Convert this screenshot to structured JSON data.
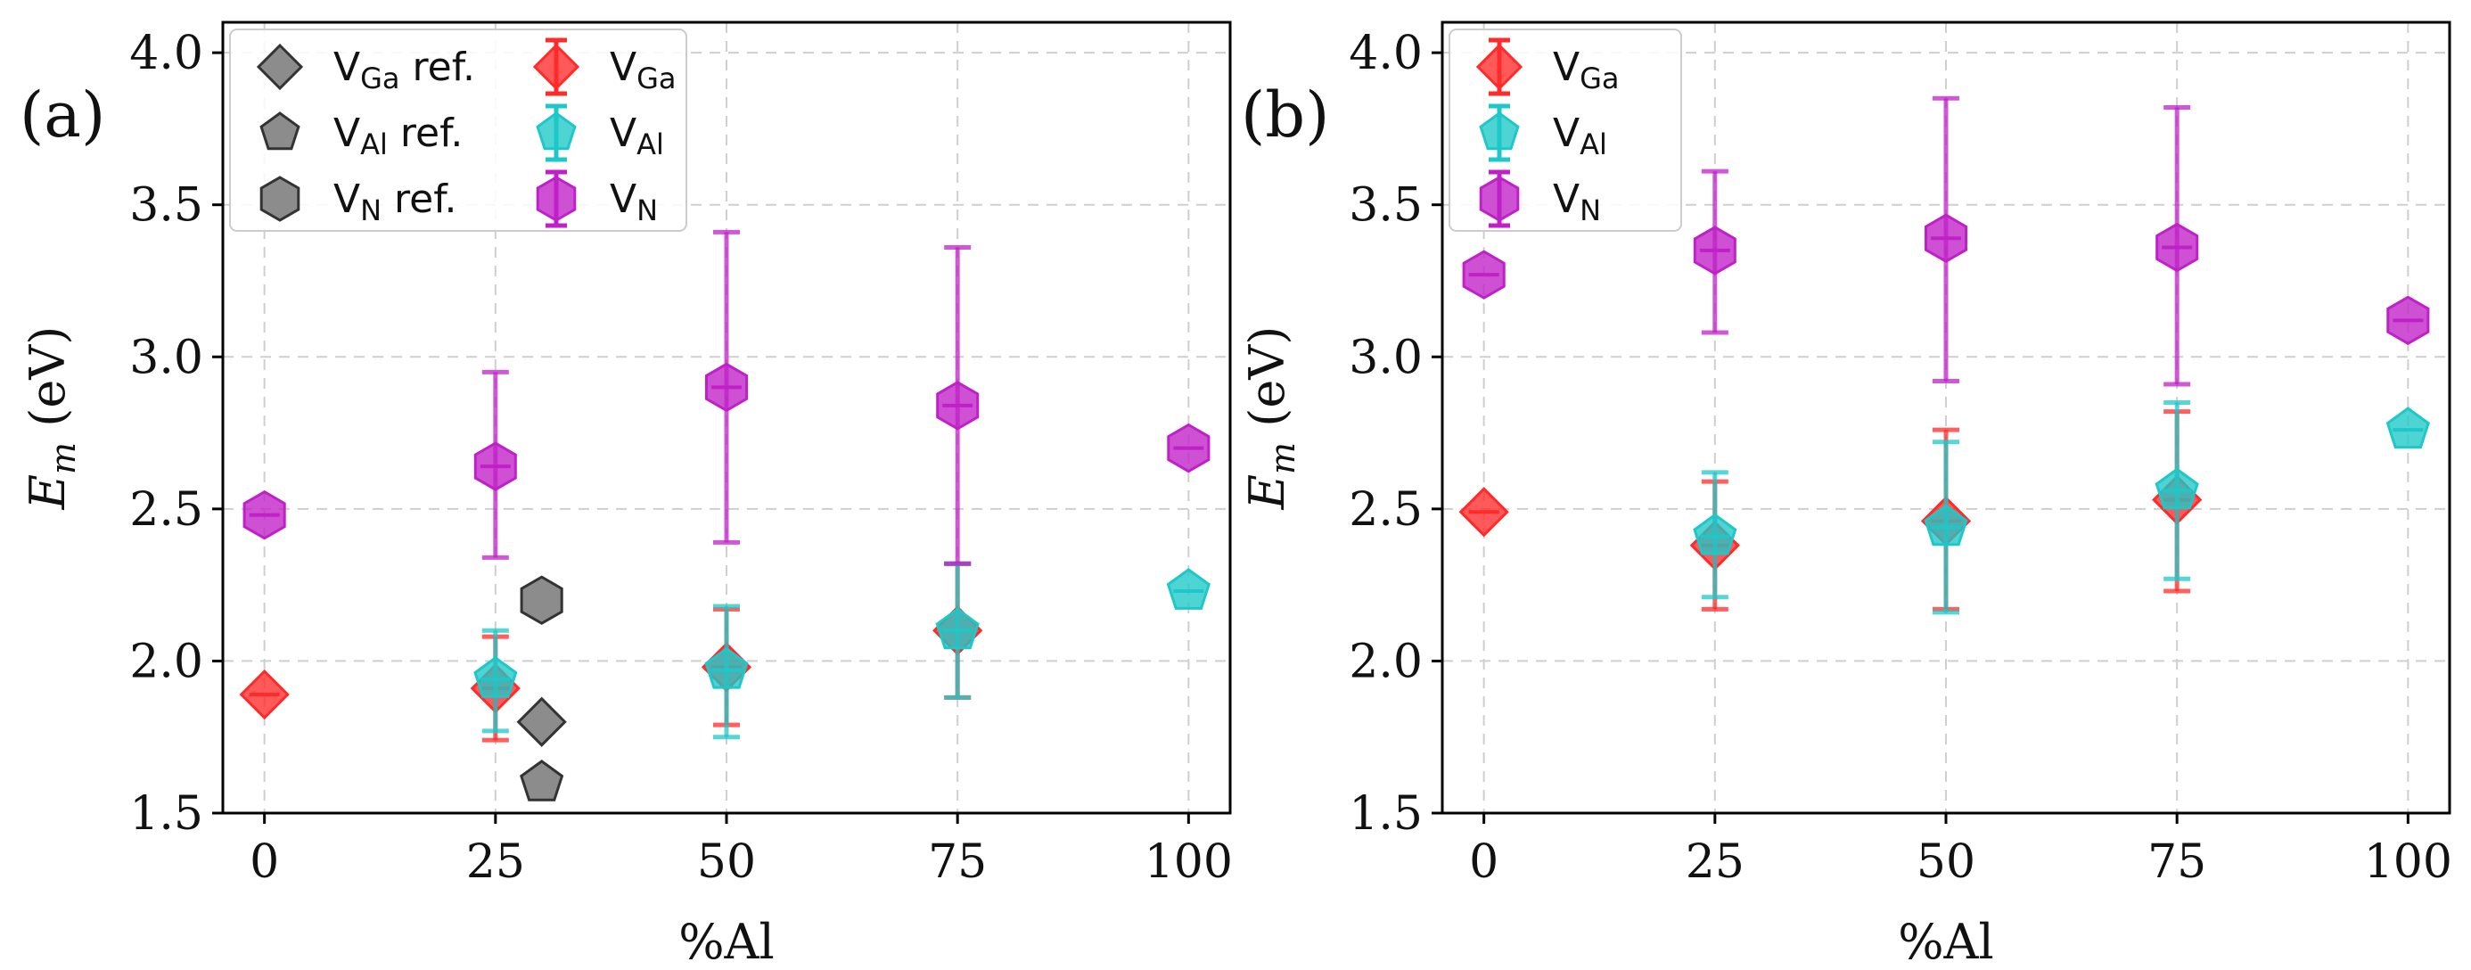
{
  "chart_data": [
    {
      "type": "scatter",
      "panel_label": "(a)",
      "xlabel": "%Al",
      "ylabel_main": "E",
      "ylabel_sub": "m",
      "ylabel_unit": " (eV)",
      "xlim": [
        -4.5,
        104.5
      ],
      "ylim": [
        1.5,
        4.1
      ],
      "xticks": [
        0,
        25,
        50,
        75,
        100
      ],
      "xtick_labels": [
        "0",
        "25",
        "50",
        "75",
        "100"
      ],
      "yticks": [
        1.5,
        2.0,
        2.5,
        3.0,
        3.5,
        4.0
      ],
      "ytick_labels": [
        "1.5",
        "2.0",
        "2.5",
        "3.0",
        "3.5",
        "4.0"
      ],
      "grid": true,
      "legend_position": "top-left",
      "series": [
        {
          "name": "V_Ga",
          "legend_main": "V",
          "legend_sub": "Ga",
          "legend_suffix": "",
          "color": "#ff2a2a",
          "marker": "diamond",
          "points": [
            {
              "x": 0,
              "y": 1.89
            },
            {
              "x": 25,
              "y": 1.91,
              "yerr_low": 1.74,
              "yerr_high": 2.08
            },
            {
              "x": 50,
              "y": 1.98,
              "yerr_low": 1.79,
              "yerr_high": 2.17
            },
            {
              "x": 75,
              "y": 2.1,
              "yerr_low": 1.88,
              "yerr_high": 2.32
            }
          ]
        },
        {
          "name": "V_Al",
          "legend_main": "V",
          "legend_sub": "Al",
          "legend_suffix": "",
          "color": "#1ec8c8",
          "marker": "pentagon",
          "points": [
            {
              "x": 25,
              "y": 1.94,
              "yerr_low": 1.77,
              "yerr_high": 2.1
            },
            {
              "x": 50,
              "y": 1.97,
              "yerr_low": 1.75,
              "yerr_high": 2.18
            },
            {
              "x": 75,
              "y": 2.1,
              "yerr_low": 1.88,
              "yerr_high": 2.32
            },
            {
              "x": 100,
              "y": 2.23
            }
          ]
        },
        {
          "name": "V_N",
          "legend_main": "V",
          "legend_sub": "N",
          "legend_suffix": "",
          "color": "#c020c8",
          "marker": "hexagon",
          "points": [
            {
              "x": 0,
              "y": 2.48
            },
            {
              "x": 25,
              "y": 2.64,
              "yerr_low": 2.34,
              "yerr_high": 2.95
            },
            {
              "x": 50,
              "y": 2.9,
              "yerr_low": 2.39,
              "yerr_high": 3.41
            },
            {
              "x": 75,
              "y": 2.84,
              "yerr_low": 2.32,
              "yerr_high": 3.36
            },
            {
              "x": 100,
              "y": 2.7
            }
          ]
        },
        {
          "name": "V_Ga ref.",
          "legend_main": "V",
          "legend_sub": "Ga",
          "legend_suffix": " ref.",
          "color": "#6b6b6b",
          "marker": "diamond",
          "reference": true,
          "points": [
            {
              "x": 30,
              "y": 1.8
            }
          ]
        },
        {
          "name": "V_Al ref.",
          "legend_main": "V",
          "legend_sub": "Al",
          "legend_suffix": " ref.",
          "color": "#6b6b6b",
          "marker": "pentagon",
          "reference": true,
          "points": [
            {
              "x": 30,
              "y": 1.6
            }
          ]
        },
        {
          "name": "V_N ref.",
          "legend_main": "V",
          "legend_sub": "N",
          "legend_suffix": " ref.",
          "color": "#6b6b6b",
          "marker": "hexagon",
          "reference": true,
          "points": [
            {
              "x": 30,
              "y": 2.2
            }
          ]
        }
      ],
      "legend_order": [
        "V_Ga ref.",
        "V_Al ref.",
        "V_N ref.",
        "V_Ga",
        "V_Al",
        "V_N"
      ]
    },
    {
      "type": "scatter",
      "panel_label": "(b)",
      "xlabel": "%Al",
      "ylabel_main": "E",
      "ylabel_sub": "m",
      "ylabel_unit": " (eV)",
      "xlim": [
        -4.5,
        104.5
      ],
      "ylim": [
        1.5,
        4.1
      ],
      "xticks": [
        0,
        25,
        50,
        75,
        100
      ],
      "xtick_labels": [
        "0",
        "25",
        "50",
        "75",
        "100"
      ],
      "yticks": [
        1.5,
        2.0,
        2.5,
        3.0,
        3.5,
        4.0
      ],
      "ytick_labels": [
        "1.5",
        "2.0",
        "2.5",
        "3.0",
        "3.5",
        "4.0"
      ],
      "grid": true,
      "legend_position": "top-left",
      "series": [
        {
          "name": "V_Ga",
          "legend_main": "V",
          "legend_sub": "Ga",
          "legend_suffix": "",
          "color": "#ff2a2a",
          "marker": "diamond",
          "points": [
            {
              "x": 0,
              "y": 2.49
            },
            {
              "x": 25,
              "y": 2.38,
              "yerr_low": 2.17,
              "yerr_high": 2.59
            },
            {
              "x": 50,
              "y": 2.46,
              "yerr_low": 2.17,
              "yerr_high": 2.76
            },
            {
              "x": 75,
              "y": 2.53,
              "yerr_low": 2.23,
              "yerr_high": 2.82
            }
          ]
        },
        {
          "name": "V_Al",
          "legend_main": "V",
          "legend_sub": "Al",
          "legend_suffix": "",
          "color": "#1ec8c8",
          "marker": "pentagon",
          "points": [
            {
              "x": 25,
              "y": 2.41,
              "yerr_low": 2.21,
              "yerr_high": 2.62
            },
            {
              "x": 50,
              "y": 2.44,
              "yerr_low": 2.16,
              "yerr_high": 2.72
            },
            {
              "x": 75,
              "y": 2.56,
              "yerr_low": 2.27,
              "yerr_high": 2.85
            },
            {
              "x": 100,
              "y": 2.76
            }
          ]
        },
        {
          "name": "V_N",
          "legend_main": "V",
          "legend_sub": "N",
          "legend_suffix": "",
          "color": "#c020c8",
          "marker": "hexagon",
          "points": [
            {
              "x": 0,
              "y": 3.27
            },
            {
              "x": 25,
              "y": 3.35,
              "yerr_low": 3.08,
              "yerr_high": 3.61
            },
            {
              "x": 50,
              "y": 3.39,
              "yerr_low": 2.92,
              "yerr_high": 3.85
            },
            {
              "x": 75,
              "y": 3.36,
              "yerr_low": 2.91,
              "yerr_high": 3.82
            },
            {
              "x": 100,
              "y": 3.12
            }
          ]
        }
      ],
      "legend_order": [
        "V_Ga",
        "V_Al",
        "V_N"
      ]
    }
  ]
}
